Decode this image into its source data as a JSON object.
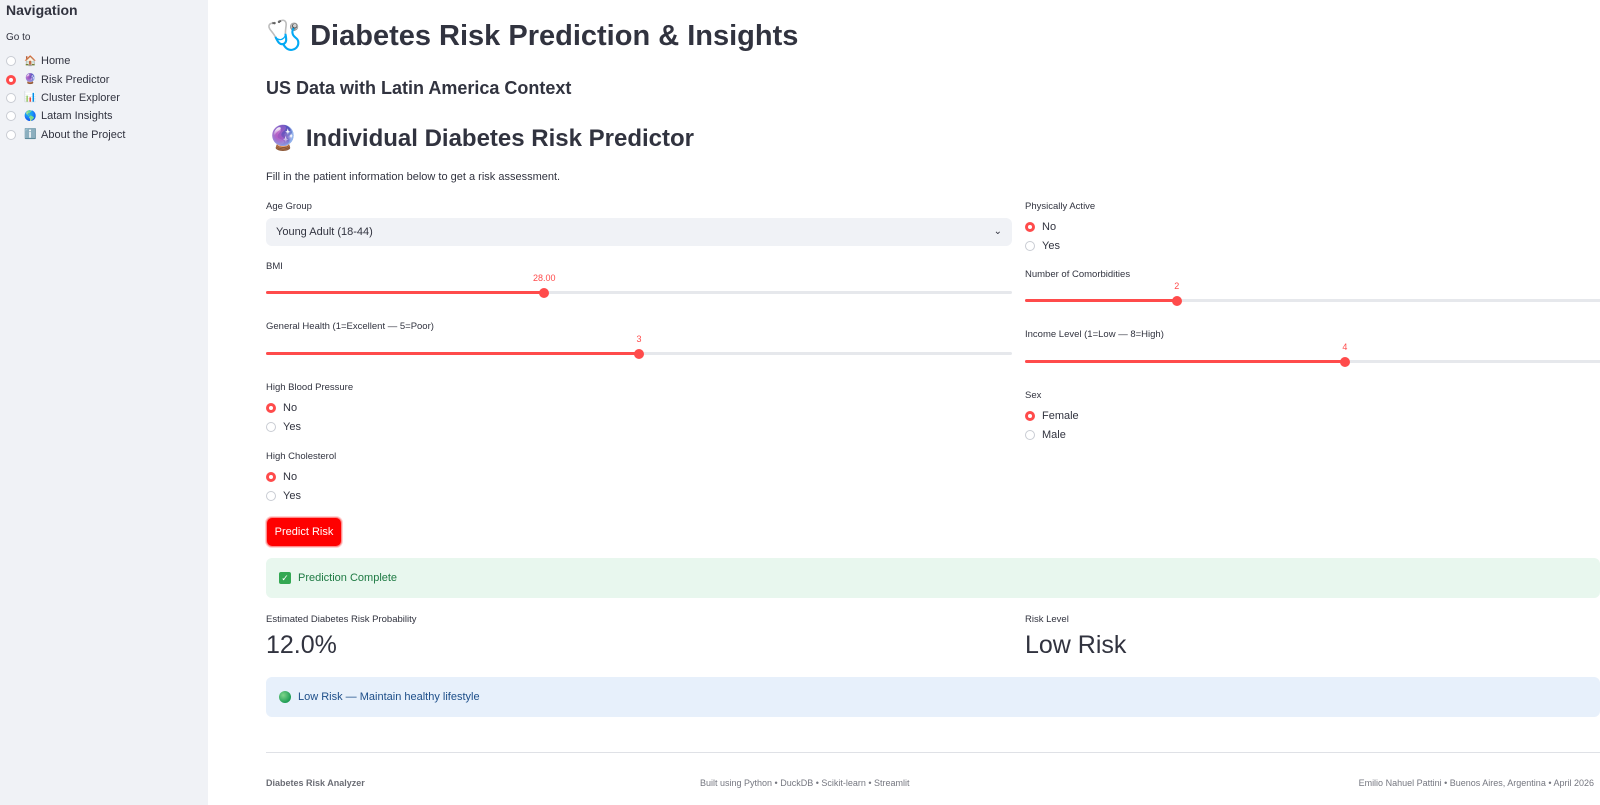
{
  "sidebar": {
    "title": "Navigation",
    "goto_label": "Go to",
    "items": [
      {
        "icon": "🏠",
        "label": "Home",
        "selected": false
      },
      {
        "icon": "🔮",
        "label": "Risk Predictor",
        "selected": true
      },
      {
        "icon": "📊",
        "label": "Cluster Explorer",
        "selected": false
      },
      {
        "icon": "🌎",
        "label": "Latam Insights",
        "selected": false
      },
      {
        "icon": "ℹ️",
        "label": "About the Project",
        "selected": false
      }
    ]
  },
  "header": {
    "title_icon": "🩺",
    "title": "Diabetes Risk Prediction & Insights",
    "subtitle": "US Data with Latin America Context"
  },
  "predictor": {
    "icon": "🔮",
    "title": "Individual Diabetes Risk Predictor",
    "intro": "Fill in the patient information below to get a risk assessment.",
    "age_group": {
      "label": "Age Group",
      "value": "Young Adult (18-44)"
    },
    "bmi": {
      "label": "BMI",
      "value_text": "28.00",
      "fraction": 0.373
    },
    "general_health": {
      "label": "General Health (1=Excellent — 5=Poor)",
      "value_text": "3",
      "fraction": 0.5
    },
    "high_bp": {
      "label": "High Blood Pressure",
      "options": [
        "No",
        "Yes"
      ],
      "selected": "No"
    },
    "high_chol": {
      "label": "High Cholesterol",
      "options": [
        "No",
        "Yes"
      ],
      "selected": "No"
    },
    "physically_active": {
      "label": "Physically Active",
      "options": [
        "No",
        "Yes"
      ],
      "selected": "No"
    },
    "comorbidities": {
      "label": "Number of Comorbidities",
      "value_text": "2",
      "fraction": 0.25
    },
    "income": {
      "label": "Income Level (1=Low — 8=High)",
      "value_text": "4",
      "fraction": 0.5
    },
    "sex": {
      "label": "Sex",
      "options": [
        "Female",
        "Male"
      ],
      "selected": "Female"
    },
    "predict_button": "Predict Risk"
  },
  "results": {
    "success_message": "Prediction Complete",
    "probability_label": "Estimated Diabetes Risk Probability",
    "probability_value": "12.0%",
    "risk_level_label": "Risk Level",
    "risk_level_value": "Low Risk",
    "info_message": "Low Risk — Maintain healthy lifestyle"
  },
  "footer": {
    "left": "Diabetes Risk Analyzer",
    "center": "Built using Python • DuckDB • Scikit-learn • Streamlit",
    "right": "Emilio Nahuel Pattini • Buenos Aires, Argentina • April 2026"
  },
  "colors": {
    "accent": "#ff4b4b",
    "button": "#ff0000",
    "success_bg": "#e8f7ee",
    "info_bg": "#e7f0fb"
  }
}
